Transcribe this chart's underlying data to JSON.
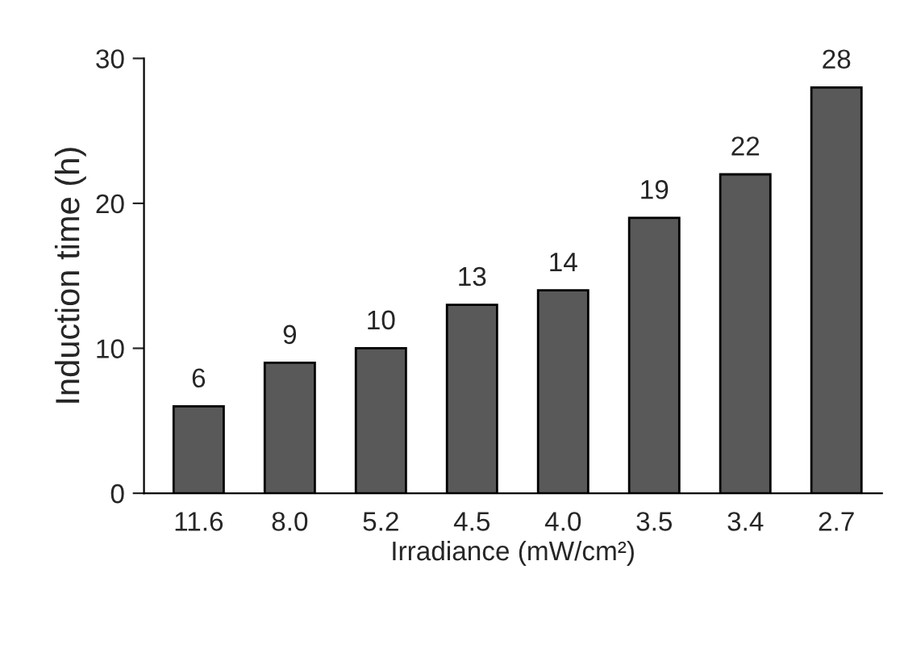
{
  "chart_data": {
    "type": "bar",
    "xlabel": "Irradiance (mW/cm²)",
    "ylabel": "Induction time (h)",
    "categories": [
      "11.6",
      "8.0",
      "5.2",
      "4.5",
      "4.0",
      "3.5",
      "3.4",
      "2.7"
    ],
    "values": [
      6,
      9,
      10,
      13,
      14,
      19,
      22,
      28
    ],
    "color": "#595959",
    "ylim": [
      0,
      30
    ],
    "yticks": [
      0,
      10,
      20,
      30
    ],
    "grid": false,
    "data_labels": true
  }
}
